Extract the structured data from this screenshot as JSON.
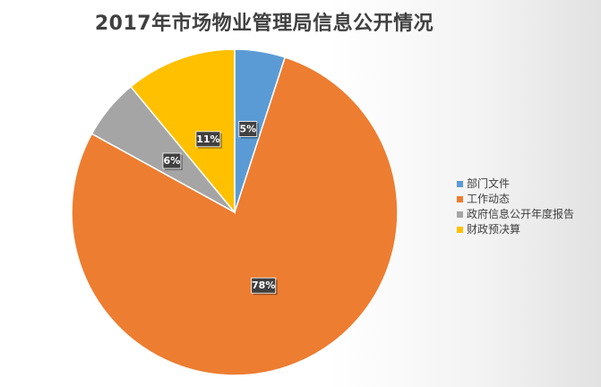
{
  "chart_data": {
    "type": "pie",
    "title": "2017年市场物业管理局信息公开情况",
    "slices": [
      {
        "label": "部门文件",
        "value": 5,
        "display": "5%",
        "color": "#5B9BD5"
      },
      {
        "label": "工作动态",
        "value": 78,
        "display": "78%",
        "color": "#ED7D31"
      },
      {
        "label": "政府信息公开年度报告",
        "value": 6,
        "display": "6%",
        "color": "#A5A5A5"
      },
      {
        "label": "财政预决算",
        "value": 11,
        "display": "11%",
        "color": "#FFC000"
      }
    ],
    "legend_position": "right"
  }
}
